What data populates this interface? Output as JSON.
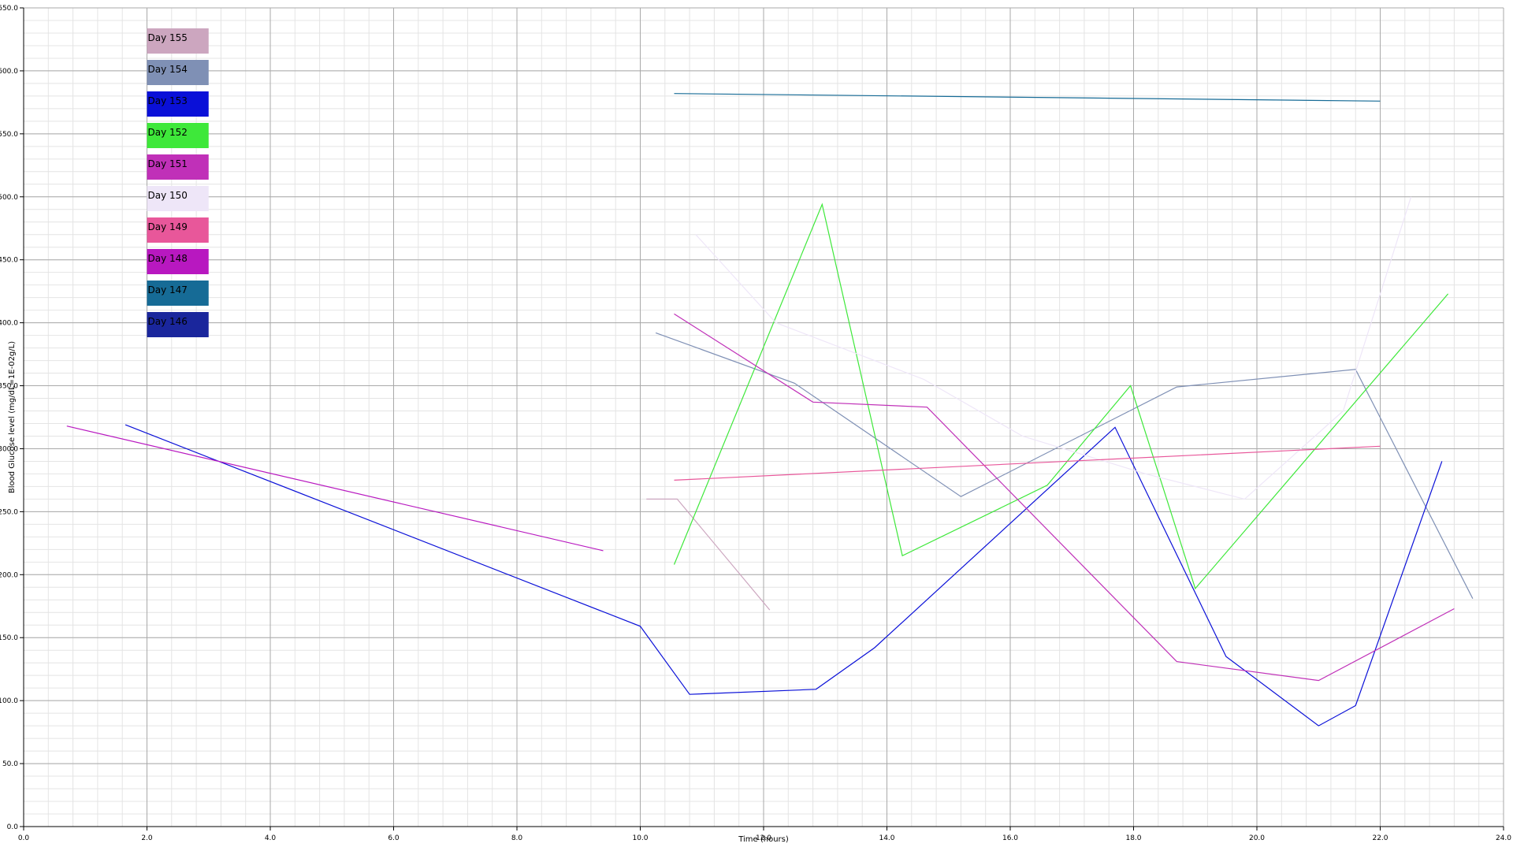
{
  "chart_data": {
    "type": "line",
    "title": "",
    "xlabel": "Time (hours)",
    "ylabel": "Blood Glucose level (mg/dL=1E-02g/L)",
    "xlim": [
      0,
      24
    ],
    "ylim": [
      0,
      650
    ],
    "x_ticks": [
      "0.0",
      "2.0",
      "4.0",
      "6.0",
      "8.0",
      "10.0",
      "12.0",
      "14.0",
      "16.0",
      "18.0",
      "20.0",
      "22.0",
      "24.0"
    ],
    "y_ticks": [
      "0.0",
      "50.0",
      "100.0",
      "150.0",
      "200.0",
      "250.0",
      "300.0",
      "350.0",
      "400.0",
      "450.0",
      "500.0",
      "550.0",
      "600.0",
      "650.0"
    ],
    "grid": true,
    "legend_position": "top-left",
    "series": [
      {
        "name": "Day 155",
        "color": "#cca6bf",
        "x": [
          10.1,
          10.6,
          12.1
        ],
        "y": [
          260,
          260,
          172
        ]
      },
      {
        "name": "Day 154",
        "color": "#7f90b5",
        "x": [
          10.25,
          12.5,
          15.2,
          18.7,
          21.6,
          23.5
        ],
        "y": [
          392,
          352,
          262,
          349,
          363,
          181
        ]
      },
      {
        "name": "Day 153",
        "color": "#0a10d8",
        "x": [
          1.65,
          10.0,
          10.8,
          12.85,
          13.8,
          17.7,
          19.5,
          21.0,
          21.6,
          23.0
        ],
        "y": [
          319,
          159,
          105,
          109,
          142,
          317,
          135,
          80,
          96,
          290
        ]
      },
      {
        "name": "Day 152",
        "color": "#3ee83a",
        "x": [
          10.55,
          12.95,
          14.25,
          16.6,
          17.95,
          19.0,
          23.1
        ],
        "y": [
          208,
          494,
          215,
          271,
          350,
          189,
          423
        ]
      },
      {
        "name": "Day 151",
        "color": "#c030b8",
        "x": [
          10.55,
          12.8,
          14.65,
          18.7,
          21.0,
          23.2
        ],
        "y": [
          407,
          337,
          333,
          131,
          116,
          173
        ]
      },
      {
        "name": "Day 150",
        "color": "#eee6f8",
        "x": [
          10.9,
          12.2,
          14.6,
          16.2,
          18.2,
          19.8,
          21.4,
          22.5
        ],
        "y": [
          470,
          400,
          355,
          310,
          280,
          260,
          330,
          500
        ]
      },
      {
        "name": "Day 149",
        "color": "#e8579a",
        "x": [
          10.55,
          22.0
        ],
        "y": [
          275,
          302
        ]
      },
      {
        "name": "Day 148",
        "color": "#b818c0",
        "x": [
          0.7,
          9.4
        ],
        "y": [
          318,
          219
        ]
      },
      {
        "name": "Day 147",
        "color": "#166b96",
        "x": [
          10.55,
          22.0
        ],
        "y": [
          582,
          576
        ]
      },
      {
        "name": "Day 146",
        "color": "#1a269c",
        "x": [],
        "y": []
      }
    ]
  }
}
